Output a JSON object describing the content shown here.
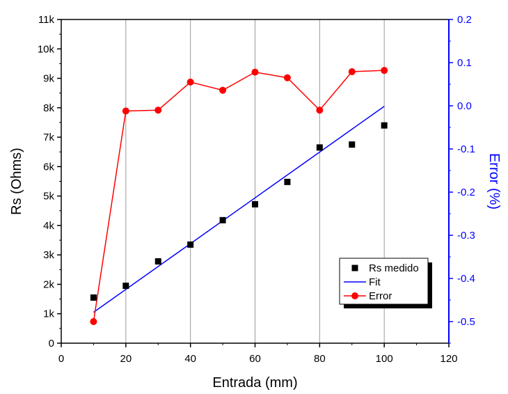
{
  "chart_data": {
    "type": "scatter",
    "title": "",
    "xlabel": "Entrada (mm)",
    "ylabel": "Rs (Ohms)",
    "y2label": "Error (%)",
    "xlim": [
      0,
      120
    ],
    "ylim": [
      0,
      11000
    ],
    "y2lim": [
      -0.55,
      0.2
    ],
    "x_ticks": [
      "0",
      "20",
      "40",
      "60",
      "80",
      "100",
      "120"
    ],
    "x_tick_values": [
      0,
      20,
      40,
      60,
      80,
      100,
      120
    ],
    "y_ticks": [
      "0",
      "1k",
      "2k",
      "3k",
      "4k",
      "5k",
      "6k",
      "7k",
      "8k",
      "9k",
      "10k",
      "11k"
    ],
    "y_tick_values": [
      0,
      1000,
      2000,
      3000,
      4000,
      5000,
      6000,
      7000,
      8000,
      9000,
      10000,
      11000
    ],
    "y2_ticks": [
      "-0.5",
      "-0.4",
      "-0.3",
      "-0.2",
      "-0.1",
      "0.0",
      "0.1",
      "0.2"
    ],
    "y2_tick_values": [
      -0.5,
      -0.4,
      -0.3,
      -0.2,
      -0.1,
      0.0,
      0.1,
      0.2
    ],
    "x_grid_values": [
      20,
      40,
      60,
      80,
      100
    ],
    "grid": "vertical",
    "legend_position": "lower-right",
    "series": [
      {
        "name": "Rs medido",
        "kind": "scatter",
        "marker": "square",
        "axis": "left",
        "color": "#000000",
        "x": [
          10,
          20,
          30,
          40,
          50,
          60,
          70,
          80,
          90,
          100
        ],
        "y": [
          1550,
          1950,
          2780,
          3350,
          4180,
          4720,
          5480,
          6650,
          6750,
          7400
        ]
      },
      {
        "name": "Fit",
        "kind": "line",
        "axis": "left",
        "color": "#0000ff",
        "x": [
          10,
          100
        ],
        "y": [
          1050,
          8050
        ]
      },
      {
        "name": "Error",
        "kind": "line-marker",
        "marker": "circle",
        "axis": "right",
        "color": "#ff0000",
        "x": [
          10,
          20,
          30,
          40,
          50,
          60,
          70,
          80,
          90,
          100
        ],
        "y": [
          -0.5,
          -0.012,
          -0.01,
          0.055,
          0.036,
          0.078,
          0.065,
          -0.01,
          0.079,
          0.082
        ]
      }
    ]
  }
}
